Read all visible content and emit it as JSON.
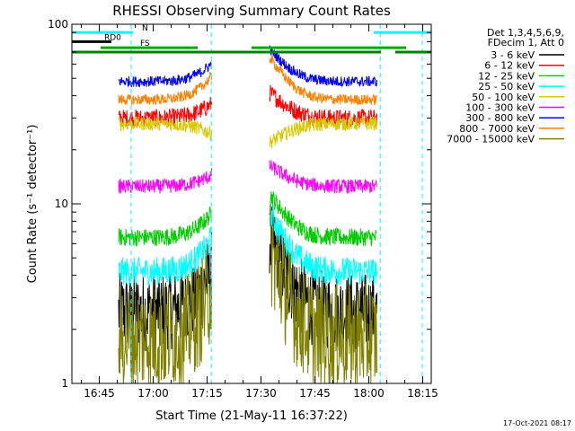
{
  "chart_data": {
    "type": "line",
    "title": "RHESSI Observing Summary Count Rates",
    "xlabel": "Start Time (21-May-11 16:37:22)",
    "ylabel": "Count Rate (s⁻¹ detector⁻¹)",
    "xlim_minutes": [
      0,
      100
    ],
    "ylim": [
      1,
      100
    ],
    "y_scale": "log",
    "x_ticks": [
      {
        "t": 7.63,
        "label": "16:45"
      },
      {
        "t": 22.63,
        "label": "17:00"
      },
      {
        "t": 37.63,
        "label": "17:15"
      },
      {
        "t": 52.63,
        "label": "17:30"
      },
      {
        "t": 67.63,
        "label": "17:45"
      },
      {
        "t": 82.63,
        "label": "18:00"
      },
      {
        "t": 97.63,
        "label": "18:15"
      }
    ],
    "y_ticks": [
      {
        "v": 1,
        "label": "1"
      },
      {
        "v": 10,
        "label": "10"
      },
      {
        "v": 100,
        "label": "100"
      }
    ],
    "legend_header": [
      "Det 1,3,4,5,6,9,",
      "FDecim 1, Att 0"
    ],
    "legend_position": "right",
    "series": [
      {
        "name": "3 - 6 keV",
        "color": "#000000",
        "quiet": 2.5,
        "peak": 9.5,
        "noise": 0.22
      },
      {
        "name": "6 - 12 keV",
        "color": "#ff0000",
        "quiet": 30,
        "peak": 47,
        "noise": 0.05
      },
      {
        "name": "12 - 25 keV",
        "color": "#00cc00",
        "quiet": 6.5,
        "peak": 14,
        "noise": 0.05
      },
      {
        "name": "25 - 50 keV",
        "color": "#00ffff",
        "quiet": 4.2,
        "peak": 12,
        "noise": 0.08
      },
      {
        "name": "50 - 100 keV",
        "color": "#d8c800",
        "quiet": 28,
        "peak": 20,
        "noise": 0.04
      },
      {
        "name": "100 - 300 keV",
        "color": "#ff00ff",
        "quiet": 12.5,
        "peak": 18,
        "noise": 0.04
      },
      {
        "name": "300 - 800 keV",
        "color": "#0000ff",
        "quiet": 48,
        "peak": 84,
        "noise": 0.03
      },
      {
        "name": "800 - 7000 keV",
        "color": "#ff8000",
        "quiet": 38,
        "peak": 80,
        "noise": 0.03
      },
      {
        "name": "7000 - 15000 keV",
        "color": "#808000",
        "quiet": 1.8,
        "peak": 8.5,
        "noise": 0.3
      }
    ],
    "data_windows_minutes": [
      [
        13,
        39
      ],
      [
        55,
        85
      ]
    ],
    "flags": [
      {
        "label": "N",
        "color": "#00ffff",
        "value": 90,
        "segments": [
          [
            0,
            17
          ],
          [
            84,
            100
          ]
        ]
      },
      {
        "label": "RD0",
        "color": "#000000",
        "value": 80,
        "segments": [
          [
            0,
            11
          ]
        ]
      },
      {
        "label": "",
        "color": "#00aa00",
        "value": 74,
        "segments": [
          [
            8,
            35
          ],
          [
            50,
            93
          ]
        ]
      },
      {
        "label": "",
        "color": "#008000",
        "value": 70,
        "segments": [
          [
            0,
            86
          ],
          [
            90,
            100
          ]
        ]
      },
      {
        "label": "FS",
        "color": "#000000",
        "value": 74,
        "segments": []
      }
    ],
    "footer_date": "17-Oct-2021 08:17"
  }
}
